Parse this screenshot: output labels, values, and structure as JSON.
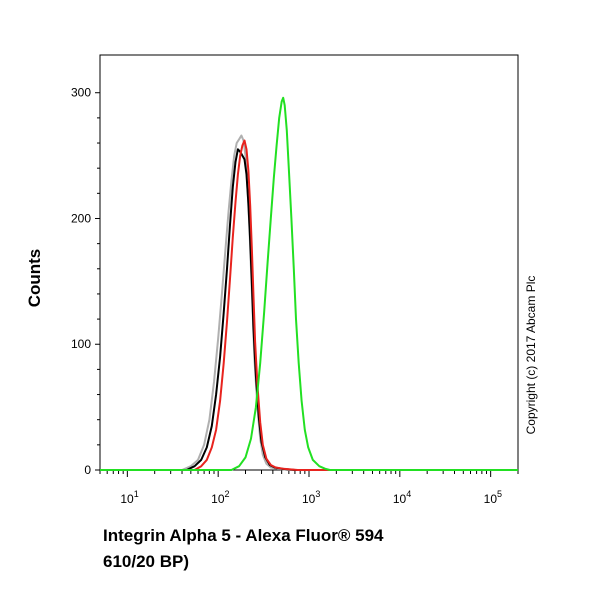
{
  "chart_data": {
    "type": "line",
    "xscale": "log",
    "xlim": [
      5,
      200000
    ],
    "ylim": [
      0,
      330
    ],
    "y_ticks": [
      0,
      100,
      200,
      300
    ],
    "x_ticks": [
      {
        "value": 10,
        "base": "10",
        "exp": "1"
      },
      {
        "value": 100,
        "base": "10",
        "exp": "2"
      },
      {
        "value": 1000,
        "base": "10",
        "exp": "3"
      },
      {
        "value": 10000,
        "base": "10",
        "exp": "4"
      },
      {
        "value": 100000,
        "base": "10",
        "exp": "5"
      }
    ],
    "xlabel_line1": "Integrin Alpha 5 - Alexa Fluor® 594",
    "xlabel_line2": "610/20 BP)",
    "ylabel": "Counts",
    "copyright": "Copyright (c) 2017 Abcam Plc",
    "grid": false,
    "series": [
      {
        "color": "#b0b0b0",
        "x": [
          5,
          40,
          50,
          60,
          70,
          80,
          90,
          100,
          110,
          120,
          130,
          140,
          150,
          160,
          170,
          180,
          190,
          200,
          210,
          220,
          230,
          240,
          250,
          270,
          290,
          310,
          340,
          380,
          450,
          600,
          200000
        ],
        "y": [
          0,
          0,
          3,
          8,
          20,
          40,
          70,
          105,
          140,
          175,
          205,
          230,
          250,
          260,
          263,
          266,
          262,
          250,
          225,
          195,
          160,
          125,
          90,
          50,
          25,
          12,
          5,
          2,
          1,
          0,
          0
        ]
      },
      {
        "color": "#000000",
        "x": [
          5,
          45,
          55,
          65,
          75,
          85,
          95,
          105,
          115,
          125,
          135,
          145,
          155,
          165,
          175,
          185,
          195,
          205,
          215,
          225,
          235,
          245,
          260,
          280,
          300,
          330,
          370,
          420,
          500,
          700,
          200000
        ],
        "y": [
          0,
          0,
          3,
          8,
          18,
          35,
          60,
          90,
          125,
          160,
          195,
          225,
          245,
          255,
          253,
          250,
          247,
          235,
          212,
          182,
          148,
          112,
          75,
          42,
          22,
          10,
          4,
          2,
          1,
          0,
          0
        ]
      },
      {
        "color": "#e8231e",
        "x": [
          5,
          55,
          65,
          75,
          85,
          95,
          105,
          115,
          125,
          135,
          145,
          155,
          165,
          175,
          185,
          195,
          205,
          215,
          225,
          235,
          245,
          255,
          270,
          290,
          310,
          340,
          380,
          430,
          520,
          750,
          200000
        ],
        "y": [
          0,
          0,
          3,
          8,
          18,
          32,
          55,
          85,
          118,
          152,
          185,
          213,
          235,
          250,
          258,
          262,
          255,
          238,
          210,
          175,
          138,
          102,
          68,
          38,
          20,
          9,
          4,
          2,
          1,
          0,
          0
        ]
      },
      {
        "color": "#22e022",
        "x": [
          5,
          140,
          170,
          200,
          230,
          260,
          290,
          320,
          350,
          380,
          410,
          440,
          470,
          500,
          520,
          540,
          570,
          600,
          640,
          680,
          720,
          770,
          830,
          900,
          980,
          1100,
          1300,
          1500,
          1700,
          200000
        ],
        "y": [
          0,
          0,
          3,
          10,
          25,
          50,
          85,
          125,
          165,
          200,
          232,
          258,
          280,
          293,
          296,
          290,
          270,
          240,
          200,
          160,
          120,
          85,
          55,
          32,
          18,
          8,
          3,
          1,
          0,
          0
        ]
      }
    ]
  }
}
